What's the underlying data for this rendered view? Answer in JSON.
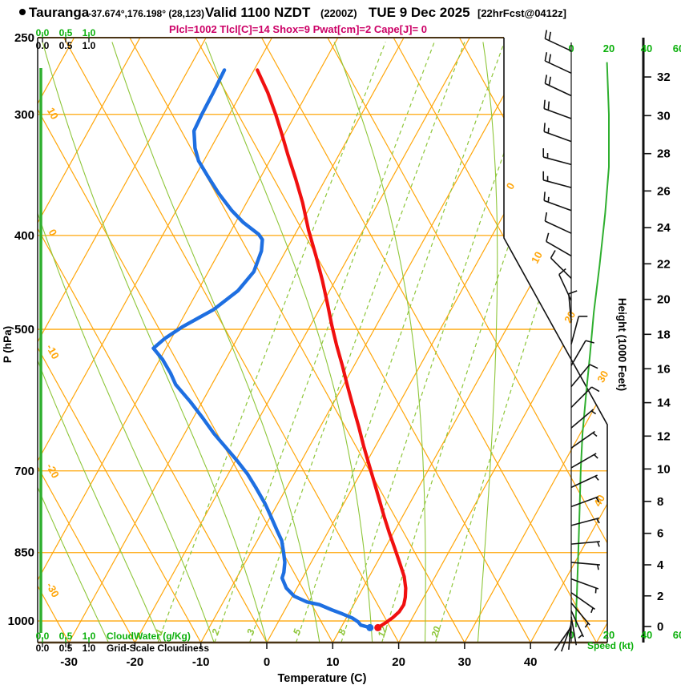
{
  "header": {
    "station": "Tauranga",
    "coords": "-37.674°,176.198° (28,123)",
    "valid": "Valid 1100 NZDT",
    "valid_z": "(2200Z)",
    "date": "TUE 9 Dec 2025",
    "fcst_tag": "[22hrFcst@0412z]",
    "indices": "Plcl=1002 Tlcl[C]=14 Shox=9 Pwat[cm]=2 Cape[J]= 0"
  },
  "colors": {
    "orange": "#FFA60A",
    "grid_green": "#8EC63A",
    "text_green": "#0CB00C",
    "accent_green": "#2FAF2F",
    "magenta": "#CC0066",
    "red": "#F01010",
    "blue": "#1E6FE1",
    "brown_axis": "#4A3416",
    "black": "#111111"
  },
  "chart_data": {
    "type": "line",
    "subtype": "skew-t-log-p-sounding",
    "title": "Tauranga forecast sounding, valid 1100 NZDT (2200Z) TUE 9 Dec 2025, 22 h forecast",
    "x_axis": {
      "label": "Temperature (C)",
      "ticks": [
        -30,
        -20,
        -10,
        0,
        10,
        20,
        30,
        40
      ]
    },
    "pressure_axis": {
      "label": "P (hPa)",
      "ticks": [
        250,
        300,
        400,
        500,
        700,
        850,
        1000
      ],
      "scale": "log",
      "top_hpa": 250,
      "bottom_hpa": 1052.6
    },
    "height_axis": {
      "label": "Height (1000 Feet)",
      "ticks": [
        0,
        2,
        4,
        6,
        8,
        10,
        12,
        14,
        16,
        18,
        20,
        22,
        24,
        26,
        28,
        30,
        32
      ]
    },
    "cloud_scales": {
      "tick_labels": [
        "0.0",
        "0.5",
        "1.0"
      ],
      "green_label": "CloudWater (g/Kg)",
      "black_label": "Grid-Scale Cloudiness"
    },
    "speed_scale": {
      "label": "Speed (kt)",
      "ticks": [
        0,
        20,
        40,
        60
      ]
    },
    "grid": {
      "isotherm_step_c": 10,
      "isotherm_edge_labels": [
        0,
        10,
        20,
        30,
        40
      ],
      "dry_adiabat_edge_labels": [
        10,
        0,
        -10,
        -20,
        -30
      ],
      "mixing_ratio_g_kg": [
        1,
        2,
        3,
        5,
        8,
        12,
        20
      ],
      "moist_adiabat_starts_c": [
        -24,
        -16,
        -8,
        0,
        8,
        16,
        24,
        32
      ]
    },
    "series": [
      {
        "name": "temperature",
        "units": [
          "hPa",
          "C"
        ],
        "points": [
          [
            270,
            -49.5
          ],
          [
            285,
            -46.0
          ],
          [
            300,
            -43.0
          ],
          [
            315,
            -40.3
          ],
          [
            330,
            -37.8
          ],
          [
            350,
            -34.5
          ],
          [
            370,
            -31.5
          ],
          [
            395,
            -28.3
          ],
          [
            420,
            -25.0
          ],
          [
            445,
            -22.0
          ],
          [
            470,
            -19.3
          ],
          [
            495,
            -16.8
          ],
          [
            520,
            -14.3
          ],
          [
            545,
            -11.8
          ],
          [
            570,
            -9.5
          ],
          [
            600,
            -6.8
          ],
          [
            630,
            -4.2
          ],
          [
            660,
            -1.8
          ],
          [
            690,
            0.6
          ],
          [
            720,
            2.9
          ],
          [
            750,
            5.1
          ],
          [
            780,
            7.2
          ],
          [
            810,
            9.3
          ],
          [
            840,
            11.4
          ],
          [
            870,
            13.4
          ],
          [
            900,
            15.3
          ],
          [
            925,
            16.5
          ],
          [
            945,
            17.2
          ],
          [
            962,
            17.6
          ],
          [
            978,
            17.5
          ],
          [
            992,
            17.0
          ],
          [
            1002,
            16.5
          ],
          [
            1010,
            16.0
          ],
          [
            1016,
            15.6
          ]
        ]
      },
      {
        "name": "dewpoint",
        "units": [
          "hPa",
          "C"
        ],
        "points": [
          [
            270,
            -54.5
          ],
          [
            285,
            -54.3
          ],
          [
            300,
            -54.2
          ],
          [
            312,
            -54.0
          ],
          [
            325,
            -52.4
          ],
          [
            335,
            -50.8
          ],
          [
            348,
            -48.0
          ],
          [
            362,
            -45.0
          ],
          [
            377,
            -41.6
          ],
          [
            388,
            -38.8
          ],
          [
            399,
            -35.5
          ],
          [
            404,
            -34.5
          ],
          [
            415,
            -33.7
          ],
          [
            436,
            -33.1
          ],
          [
            456,
            -33.9
          ],
          [
            477,
            -36.0
          ],
          [
            497,
            -39.3
          ],
          [
            511,
            -41.0
          ],
          [
            523,
            -41.9
          ],
          [
            537,
            -39.6
          ],
          [
            555,
            -37.2
          ],
          [
            570,
            -35.5
          ],
          [
            594,
            -31.8
          ],
          [
            617,
            -28.6
          ],
          [
            641,
            -25.5
          ],
          [
            662,
            -22.6
          ],
          [
            683,
            -19.8
          ],
          [
            705,
            -17.1
          ],
          [
            728,
            -14.7
          ],
          [
            757,
            -11.9
          ],
          [
            776,
            -10.3
          ],
          [
            806,
            -7.9
          ],
          [
            826,
            -6.3
          ],
          [
            850,
            -5.0
          ],
          [
            870,
            -4.0
          ],
          [
            891,
            -3.3
          ],
          [
            903,
            -3.1
          ],
          [
            925,
            -1.6
          ],
          [
            943,
            0.3
          ],
          [
            956,
            2.7
          ],
          [
            962,
            4.8
          ],
          [
            974,
            7.1
          ],
          [
            983,
            9.0
          ],
          [
            993,
            10.9
          ],
          [
            1002,
            12.1
          ],
          [
            1010,
            12.8
          ],
          [
            1016,
            14.4
          ]
        ]
      }
    ],
    "wind_barbs": {
      "units": [
        "hPa",
        "deg_from",
        "kt"
      ],
      "levels": [
        [
          258,
          295,
          20
        ],
        [
          272,
          295,
          20
        ],
        [
          287,
          295,
          20
        ],
        [
          303,
          290,
          20
        ],
        [
          320,
          290,
          15
        ],
        [
          338,
          285,
          15
        ],
        [
          357,
          285,
          15
        ],
        [
          377,
          290,
          15
        ],
        [
          398,
          295,
          12
        ],
        [
          420,
          300,
          10
        ],
        [
          443,
          315,
          10
        ],
        [
          467,
          335,
          10
        ],
        [
          492,
          355,
          10
        ],
        [
          518,
          15,
          10
        ],
        [
          545,
          30,
          10
        ],
        [
          573,
          40,
          10
        ],
        [
          602,
          45,
          10
        ],
        [
          632,
          50,
          8
        ],
        [
          663,
          55,
          8
        ],
        [
          695,
          60,
          7
        ],
        [
          728,
          65,
          6
        ],
        [
          762,
          70,
          5
        ],
        [
          797,
          75,
          5
        ],
        [
          833,
          85,
          5
        ],
        [
          870,
          95,
          4
        ],
        [
          905,
          110,
          4
        ],
        [
          935,
          125,
          3
        ],
        [
          958,
          140,
          3
        ],
        [
          976,
          155,
          3
        ],
        [
          990,
          170,
          2
        ],
        [
          1000,
          185,
          2
        ],
        [
          1008,
          200,
          2
        ],
        [
          1014,
          215,
          2
        ]
      ]
    },
    "wind_speed_profile": {
      "units": [
        "hPa",
        "kt"
      ],
      "points": [
        [
          265,
          19
        ],
        [
          300,
          20
        ],
        [
          340,
          20
        ],
        [
          380,
          18
        ],
        [
          430,
          15
        ],
        [
          480,
          12
        ],
        [
          530,
          10
        ],
        [
          580,
          8
        ],
        [
          640,
          6
        ],
        [
          700,
          5
        ],
        [
          760,
          4.5
        ],
        [
          820,
          4
        ],
        [
          880,
          3.5
        ],
        [
          940,
          3
        ],
        [
          990,
          2.5
        ],
        [
          1015,
          2.5
        ]
      ]
    }
  }
}
